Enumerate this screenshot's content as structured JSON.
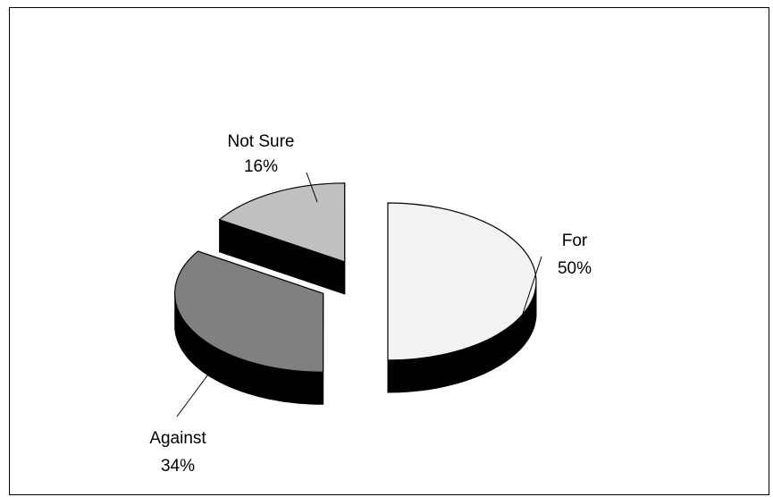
{
  "chart_data": {
    "type": "pie",
    "title": "",
    "style": "3d-exploded",
    "slices": [
      {
        "label": "For",
        "value": 50,
        "value_text": "50%",
        "color": "#f2f2f2"
      },
      {
        "label": "Against",
        "value": 34,
        "value_text": "34%",
        "color": "#808080"
      },
      {
        "label": "Not Sure",
        "value": 16,
        "value_text": "16%",
        "color": "#c0c0c0"
      }
    ],
    "side_color": "#000000",
    "outline_color": "#000000",
    "legend": "none"
  }
}
